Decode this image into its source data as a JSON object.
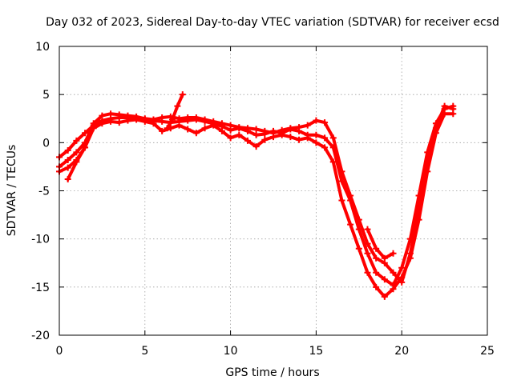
{
  "chart_data": {
    "type": "scatter",
    "title": "Day 032 of 2023, Sidereal Day-to-day VTEC variation (SDTVAR) for receiver ecsd",
    "xlabel": "GPS time / hours",
    "ylabel": "SDTVAR / TECUs",
    "xlim": [
      0,
      25
    ],
    "ylim": [
      -20,
      10
    ],
    "xticks": [
      0,
      5,
      10,
      15,
      20,
      25
    ],
    "yticks": [
      -20,
      -15,
      -10,
      -5,
      0,
      5,
      10
    ],
    "grid": true,
    "marker": "+",
    "color": "#ff0000",
    "series": [
      {
        "name": "track-1",
        "x": [
          0,
          0.5,
          1,
          1.5,
          2,
          2.5,
          3,
          3.5,
          4,
          4.5,
          5,
          5.5,
          6,
          6.5,
          7,
          7.5,
          8,
          8.5,
          9,
          9.5,
          10,
          10.5,
          11,
          11.5,
          12,
          12.5,
          13,
          13.5,
          14,
          14.5,
          15,
          15.5,
          16,
          16.5,
          17,
          17.5,
          18,
          18.5,
          19,
          19.5,
          20,
          20.5,
          21,
          21.5,
          22,
          22.5,
          23
        ],
        "y": [
          -1.5,
          -0.8,
          0.2,
          1.0,
          1.8,
          2.3,
          2.5,
          2.6,
          2.6,
          2.5,
          2.4,
          2.3,
          2.2,
          2.1,
          2.2,
          2.3,
          2.4,
          2.2,
          2.0,
          1.7,
          1.3,
          1.5,
          1.2,
          0.8,
          0.9,
          1.2,
          1.0,
          1.4,
          1.2,
          0.8,
          0.8,
          0.5,
          -0.5,
          -4.0,
          -6.0,
          -9.0,
          -11.5,
          -13.5,
          -14.2,
          -14.8,
          -13.0,
          -10.0,
          -5.5,
          -1.0,
          2.0,
          3.5,
          3.8
        ]
      },
      {
        "name": "track-2",
        "x": [
          0,
          0.5,
          1,
          1.5,
          2,
          2.5,
          3,
          3.5,
          4,
          4.5,
          5,
          5.5,
          6,
          6.5,
          7,
          7.5,
          8,
          8.5,
          9,
          9.5,
          10,
          10.5,
          11,
          11.5,
          12,
          12.5,
          13,
          13.5,
          14,
          14.5,
          15,
          15.5,
          16,
          16.5,
          17,
          17.5,
          18,
          18.5,
          19,
          19.5,
          20,
          20.5,
          21,
          21.5,
          22,
          22.5,
          23
        ],
        "y": [
          -2.5,
          -1.8,
          -1.0,
          0.0,
          2.0,
          2.8,
          3.0,
          2.9,
          2.8,
          2.7,
          2.5,
          2.4,
          2.6,
          2.7,
          2.5,
          2.6,
          2.6,
          2.4,
          2.2,
          2.0,
          1.8,
          1.6,
          1.5,
          1.4,
          1.2,
          1.0,
          1.3,
          1.5,
          1.6,
          1.8,
          2.3,
          2.1,
          0.5,
          -3.0,
          -5.5,
          -8.0,
          -10.5,
          -12.0,
          -12.5,
          -13.5,
          -14.5,
          -11.5,
          -7.0,
          -2.0,
          1.5,
          3.8,
          3.5
        ]
      },
      {
        "name": "track-3",
        "x": [
          0,
          0.5,
          1,
          1.5,
          2,
          2.5,
          3,
          3.5,
          4,
          4.5,
          5,
          5.5,
          6,
          6.5,
          7,
          7.5,
          8,
          8.5,
          9,
          9.5,
          10,
          10.5,
          11,
          11.5,
          12,
          12.5,
          13,
          13.5,
          14,
          14.5,
          15,
          15.5,
          16,
          16.5,
          17,
          17.5,
          18,
          18.5,
          19,
          19.5,
          20,
          20.5,
          21,
          21.5,
          22,
          22.5,
          23
        ],
        "y": [
          -3.0,
          -2.6,
          -1.8,
          -0.5,
          1.5,
          2.0,
          2.2,
          2.1,
          2.3,
          2.4,
          2.2,
          2.0,
          1.2,
          1.5,
          1.8,
          1.4,
          1.0,
          1.5,
          1.8,
          1.2,
          0.5,
          0.8,
          0.2,
          -0.4,
          0.3,
          0.6,
          0.8,
          0.6,
          0.3,
          0.5,
          0.0,
          -0.5,
          -2.0,
          -6.0,
          -8.5,
          -11.0,
          -13.5,
          -15.0,
          -16.0,
          -15.2,
          -14.0,
          -12.0,
          -8.0,
          -3.0,
          1.0,
          3.0,
          3.0
        ]
      },
      {
        "name": "track-4",
        "x": [
          0.5,
          1,
          1.5
        ],
        "y": [
          -3.8,
          -2.0,
          -0.5
        ]
      },
      {
        "name": "track-5",
        "x": [
          6.3,
          6.6,
          6.9,
          7.2
        ],
        "y": [
          1.5,
          2.4,
          3.8,
          5.0
        ]
      },
      {
        "name": "track-6",
        "x": [
          18.0,
          18.5,
          19.0,
          19.5
        ],
        "y": [
          -9.0,
          -11.0,
          -12.0,
          -11.5
        ]
      }
    ]
  }
}
